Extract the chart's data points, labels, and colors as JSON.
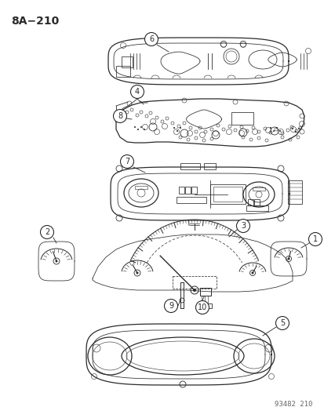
{
  "title": "8A−210",
  "fig_id": "93482 210",
  "bg_color": "#ffffff",
  "line_color": "#2a2a2a",
  "figsize": [
    4.14,
    5.33
  ],
  "dpi": 100
}
